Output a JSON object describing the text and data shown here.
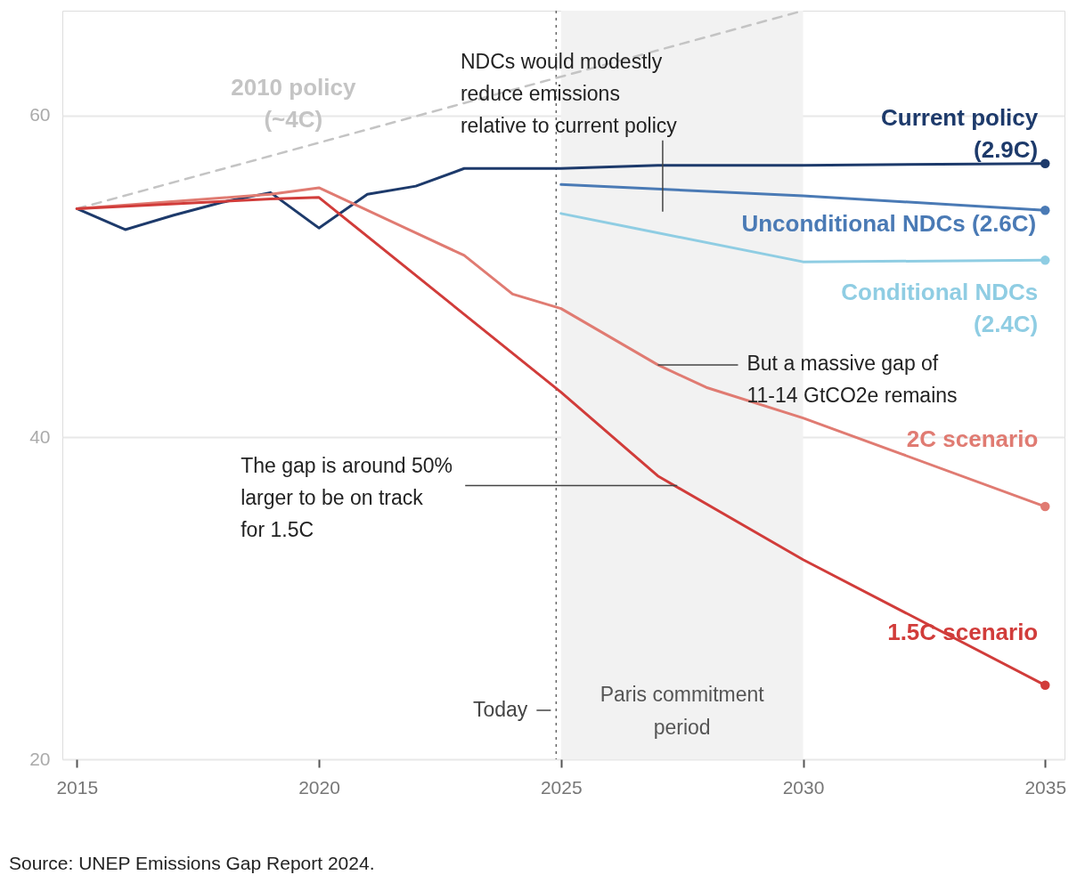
{
  "chart_data": {
    "type": "line",
    "xlim": [
      2014.7,
      2035.4
    ],
    "xticks": [
      2015,
      2020,
      2025,
      2030,
      2035
    ],
    "ylim": [
      20,
      66.5
    ],
    "yticks": [
      20,
      40,
      60
    ],
    "grid": "y",
    "series": [
      {
        "name": "2010 policy\n(~4C)",
        "color": "#c4c4c4",
        "line_style": "dashed",
        "x": [
          2015,
          2030
        ],
        "values": [
          54.2,
          66.5
        ]
      },
      {
        "name": "Current policy\n(2.9C)",
        "color": "#1d3a6b",
        "x": [
          2015,
          2016,
          2017,
          2018,
          2019,
          2020,
          2021,
          2022,
          2023,
          2025,
          2027,
          2030,
          2035
        ],
        "values": [
          54.2,
          52.9,
          53.8,
          54.6,
          55.2,
          53.0,
          55.1,
          55.6,
          56.7,
          56.7,
          56.9,
          56.9,
          57.0
        ]
      },
      {
        "name": "Unconditional NDCs (2.6C)",
        "color": "#4a7ab5",
        "x": [
          2025,
          2030,
          2035
        ],
        "values": [
          55.7,
          55.0,
          54.1
        ]
      },
      {
        "name": "Conditional NDCs\n(2.4C)",
        "color": "#8fcde3",
        "x": [
          2025,
          2030,
          2035
        ],
        "values": [
          53.9,
          50.9,
          51.0
        ]
      },
      {
        "name": "2C scenario",
        "color": "#e07b72",
        "x": [
          2015,
          2019,
          2020,
          2023,
          2024,
          2025,
          2027,
          2028,
          2030,
          2035
        ],
        "values": [
          54.2,
          55.1,
          55.5,
          51.3,
          48.9,
          48.0,
          44.5,
          43.1,
          41.2,
          35.7
        ]
      },
      {
        "name": "1.5C scenario",
        "color": "#d13c3a",
        "x": [
          2015,
          2019,
          2020,
          2025,
          2027,
          2030,
          2035
        ],
        "values": [
          54.2,
          54.8,
          54.9,
          42.8,
          37.6,
          32.4,
          24.6
        ]
      }
    ],
    "ref_lines": [
      {
        "axis": "x",
        "value": 2024.9,
        "label": "Today",
        "line_style": "dotted",
        "color": "#666666"
      }
    ],
    "bands": [
      {
        "axis": "x",
        "from": 2025,
        "to": 2030,
        "label": "Paris commitment\nperiod",
        "color": "#f2f2f2"
      }
    ],
    "annotations": [
      {
        "text": "NDCs would modestly\nreduce emissions\nrelative to current policy",
        "x": 2027.1,
        "y": 56.9
      },
      {
        "text": "But a massive gap of\n11-14 GtCO2e remains",
        "x": 2027,
        "y": 44.5
      },
      {
        "text": "The gap is around 50%\nlarger to be on track\nfor 1.5C",
        "x": 2027.4,
        "y": 37.0
      },
      "Source: UNEP Emissions Gap Report 2024."
    ]
  }
}
